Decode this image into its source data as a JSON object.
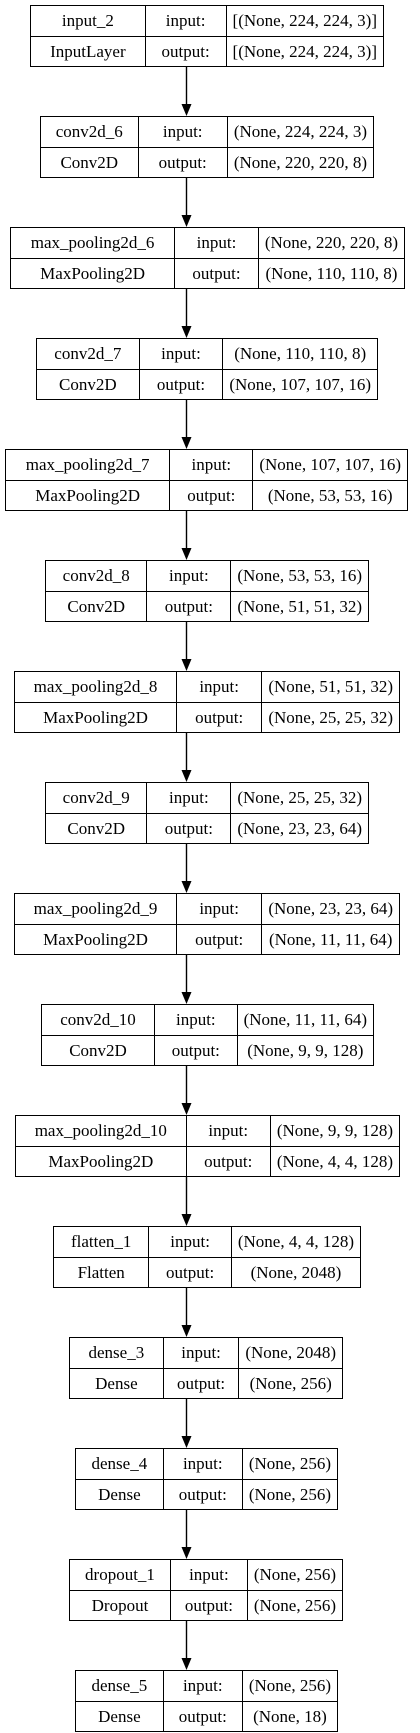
{
  "labels": {
    "input": "input:",
    "output": "output:"
  },
  "layers": [
    {
      "name": "input_2",
      "type": "InputLayer",
      "input": "[(None, 224, 224, 3)]",
      "output": "[(None, 224, 224, 3)]"
    },
    {
      "name": "conv2d_6",
      "type": "Conv2D",
      "input": "(None, 224, 224, 3)",
      "output": "(None, 220, 220, 8)"
    },
    {
      "name": "max_pooling2d_6",
      "type": "MaxPooling2D",
      "input": "(None, 220, 220, 8)",
      "output": "(None, 110, 110, 8)"
    },
    {
      "name": "conv2d_7",
      "type": "Conv2D",
      "input": "(None, 110, 110, 8)",
      "output": "(None, 107, 107, 16)"
    },
    {
      "name": "max_pooling2d_7",
      "type": "MaxPooling2D",
      "input": "(None, 107, 107, 16)",
      "output": "(None, 53, 53, 16)"
    },
    {
      "name": "conv2d_8",
      "type": "Conv2D",
      "input": "(None, 53, 53, 16)",
      "output": "(None, 51, 51, 32)"
    },
    {
      "name": "max_pooling2d_8",
      "type": "MaxPooling2D",
      "input": "(None, 51, 51, 32)",
      "output": "(None, 25, 25, 32)"
    },
    {
      "name": "conv2d_9",
      "type": "Conv2D",
      "input": "(None, 25, 25, 32)",
      "output": "(None, 23, 23, 64)"
    },
    {
      "name": "max_pooling2d_9",
      "type": "MaxPooling2D",
      "input": "(None, 23, 23, 64)",
      "output": "(None, 11, 11, 64)"
    },
    {
      "name": "conv2d_10",
      "type": "Conv2D",
      "input": "(None, 11, 11, 64)",
      "output": "(None, 9, 9, 128)"
    },
    {
      "name": "max_pooling2d_10",
      "type": "MaxPooling2D",
      "input": "(None, 9, 9, 128)",
      "output": "(None, 4, 4, 128)"
    },
    {
      "name": "flatten_1",
      "type": "Flatten",
      "input": "(None, 4, 4, 128)",
      "output": "(None, 2048)"
    },
    {
      "name": "dense_3",
      "type": "Dense",
      "input": "(None, 2048)",
      "output": "(None, 256)"
    },
    {
      "name": "dense_4",
      "type": "Dense",
      "input": "(None, 256)",
      "output": "(None, 256)"
    },
    {
      "name": "dropout_1",
      "type": "Dropout",
      "input": "(None, 256)",
      "output": "(None, 256)"
    },
    {
      "name": "dense_5",
      "type": "Dense",
      "input": "(None, 256)",
      "output": "(None, 18)"
    }
  ]
}
